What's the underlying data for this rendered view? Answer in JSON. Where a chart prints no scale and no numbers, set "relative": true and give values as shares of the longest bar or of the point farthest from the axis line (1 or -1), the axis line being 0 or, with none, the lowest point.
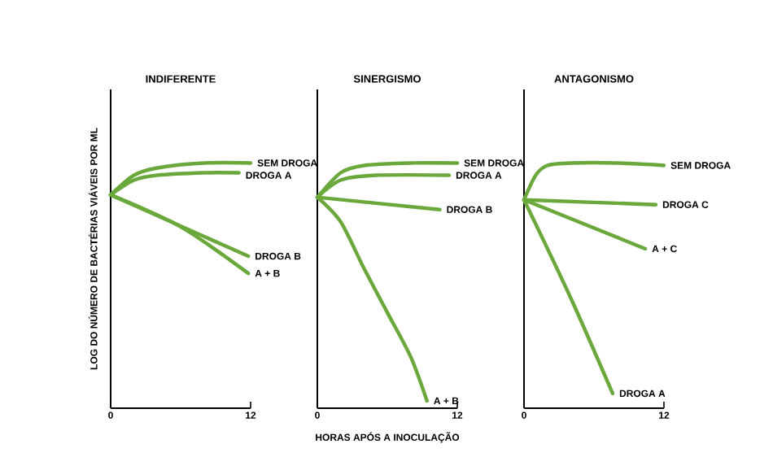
{
  "chart_data": [
    {
      "type": "line",
      "title": "INDIFERENTE",
      "ylabel": "LOG DO NÚMERO DE BACTÉRIAS VIÁVEIS POR ML",
      "relative": true,
      "xlim": [
        0,
        12
      ],
      "xticks": [
        0,
        12
      ],
      "marker": "none",
      "line_style": "solid",
      "series": [
        {
          "name": "SEM DROGA",
          "color": "#6aa83c",
          "x": [
            0,
            2,
            4,
            8,
            12
          ],
          "values": [
            0.87,
            0.95,
            0.98,
            1,
            1
          ]
        },
        {
          "name": "DROGA A",
          "color": "#6aa83c",
          "x": [
            0,
            2,
            4,
            8,
            11
          ],
          "values": [
            0.87,
            0.93,
            0.95,
            0.96,
            0.96
          ]
        },
        {
          "name": "DROGA B",
          "color": "#6aa83c",
          "x": [
            0,
            11.8
          ],
          "values": [
            0.87,
            0.62
          ]
        },
        {
          "name": "A + B",
          "color": "#6aa83c",
          "x": [
            0,
            6,
            11.8
          ],
          "values": [
            0.87,
            0.74,
            0.55
          ]
        }
      ]
    },
    {
      "type": "line",
      "title": "SINERGISMO",
      "xlabel": "HORAS APÓS A INOCULAÇÃO",
      "relative": true,
      "xlim": [
        0,
        12
      ],
      "xticks": [
        0,
        12
      ],
      "marker": "none",
      "line_style": "solid",
      "series": [
        {
          "name": "SEM DROGA",
          "color": "#6aa83c",
          "x": [
            0,
            2,
            4,
            8,
            12
          ],
          "values": [
            0.86,
            0.96,
            0.99,
            1,
            1
          ]
        },
        {
          "name": "DROGA A",
          "color": "#6aa83c",
          "x": [
            0,
            2,
            5,
            11.3
          ],
          "values": [
            0.86,
            0.93,
            0.95,
            0.95
          ]
        },
        {
          "name": "DROGA B",
          "color": "#6aa83c",
          "x": [
            0,
            10.5
          ],
          "values": [
            0.86,
            0.81
          ]
        },
        {
          "name": "A + B",
          "color": "#6aa83c",
          "x": [
            0,
            2,
            4,
            6,
            8,
            9.4
          ],
          "values": [
            0.86,
            0.76,
            0.57,
            0.39,
            0.21,
            0.03
          ]
        }
      ]
    },
    {
      "type": "line",
      "title": "ANTAGONISMO",
      "relative": true,
      "xlim": [
        0,
        12
      ],
      "xticks": [
        0,
        12
      ],
      "marker": "none",
      "line_style": "solid",
      "series": [
        {
          "name": "SEM DROGA",
          "color": "#6aa83c",
          "x": [
            0,
            1,
            2,
            4,
            8,
            12
          ],
          "values": [
            0.85,
            0.95,
            0.99,
            1,
            1,
            0.99
          ]
        },
        {
          "name": "DROGA C",
          "color": "#6aa83c",
          "x": [
            0,
            11.3
          ],
          "values": [
            0.85,
            0.83
          ]
        },
        {
          "name": "A + C",
          "color": "#6aa83c",
          "x": [
            0,
            10.4
          ],
          "values": [
            0.85,
            0.65
          ]
        },
        {
          "name": "DROGA A",
          "color": "#6aa83c",
          "x": [
            0,
            4,
            7.6
          ],
          "values": [
            0.85,
            0.45,
            0.06
          ]
        }
      ]
    }
  ]
}
